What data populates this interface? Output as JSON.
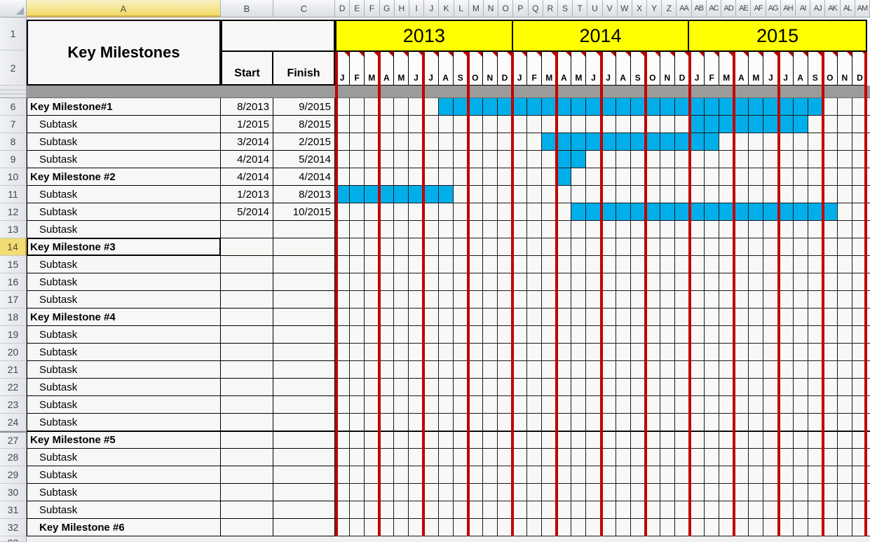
{
  "colors": {
    "bar_blue": "#00AEE9",
    "quarter_line_red": "#C00000",
    "year_band_yellow": "#FFFF00",
    "hidden_rows_band_gray": "#9B9B9B",
    "selected_header_gold": "#F2DC74",
    "gridline_black": "#000000"
  },
  "headers": {
    "left_columns": [
      "A",
      "B",
      "C"
    ],
    "chart_columns": [
      "D",
      "E",
      "F",
      "G",
      "H",
      "I",
      "J",
      "K",
      "L",
      "M",
      "N",
      "O",
      "P",
      "Q",
      "R",
      "S",
      "T",
      "U",
      "V",
      "W",
      "X",
      "Y",
      "Z",
      "AA",
      "AB",
      "AC",
      "AD",
      "AE",
      "AF",
      "AG",
      "AH",
      "AI",
      "AJ",
      "AK",
      "AL",
      "AM"
    ],
    "selected_column": "A",
    "selected_row": "14",
    "row_number_1": "1",
    "row_number_2": "2",
    "partial_bottom_row_number": "33"
  },
  "table": {
    "title": "Key Milestones",
    "start_label": "Start",
    "finish_label": "Finish"
  },
  "chart_data": {
    "type": "gantt",
    "title": "Key Milestones",
    "years": [
      "2013",
      "2014",
      "2015"
    ],
    "month_initials": [
      "J",
      "F",
      "M",
      "A",
      "M",
      "J",
      "J",
      "A",
      "S",
      "O",
      "N",
      "D"
    ],
    "x_axis": "months Jan 2013 - Dec 2015, one column per month, dark-red gridline every quarter",
    "bar_color": "#00AEE9",
    "tasks": [
      {
        "row": "6",
        "label": "Key Milestone#1",
        "level": 0,
        "bold": true,
        "start": "8/2013",
        "finish": "9/2015",
        "bar_cols": [
          7,
          32
        ]
      },
      {
        "row": "7",
        "label": "Subtask",
        "level": 1,
        "bold": false,
        "start": "1/2015",
        "finish": "8/2015",
        "bar_cols": [
          24,
          31
        ]
      },
      {
        "row": "8",
        "label": "Subtask",
        "level": 1,
        "bold": false,
        "start": "3/2014",
        "finish": "2/2015",
        "bar_cols": [
          14,
          25
        ]
      },
      {
        "row": "9",
        "label": "Subtask",
        "level": 1,
        "bold": false,
        "start": "4/2014",
        "finish": "5/2014",
        "bar_cols": [
          15,
          16
        ]
      },
      {
        "row": "10",
        "label": "Key Milestone #2",
        "level": 0,
        "bold": true,
        "start": "4/2014",
        "finish": "4/2014",
        "bar_cols": [
          15,
          15
        ]
      },
      {
        "row": "11",
        "label": "Subtask",
        "level": 1,
        "bold": false,
        "start": "1/2013",
        "finish": "8/2013",
        "bar_cols": [
          0,
          7
        ]
      },
      {
        "row": "12",
        "label": "Subtask",
        "level": 1,
        "bold": false,
        "start": "5/2014",
        "finish": "10/2015",
        "bar_cols": [
          16,
          33
        ]
      },
      {
        "row": "13",
        "label": "Subtask",
        "level": 1,
        "bold": false,
        "start": "",
        "finish": "",
        "bar_cols": null
      },
      {
        "row": "14",
        "label": "Key Milestone #3",
        "level": 0,
        "bold": true,
        "start": "",
        "finish": "",
        "bar_cols": null,
        "selected": true
      },
      {
        "row": "15",
        "label": "Subtask",
        "level": 1,
        "bold": false,
        "start": "",
        "finish": "",
        "bar_cols": null
      },
      {
        "row": "16",
        "label": "Subtask",
        "level": 1,
        "bold": false,
        "start": "",
        "finish": "",
        "bar_cols": null
      },
      {
        "row": "17",
        "label": "Subtask",
        "level": 1,
        "bold": false,
        "start": "",
        "finish": "",
        "bar_cols": null
      },
      {
        "row": "18",
        "label": "Key Milestone #4",
        "level": 0,
        "bold": true,
        "start": "",
        "finish": "",
        "bar_cols": null
      },
      {
        "row": "19",
        "label": "Subtask",
        "level": 1,
        "bold": false,
        "start": "",
        "finish": "",
        "bar_cols": null
      },
      {
        "row": "20",
        "label": "Subtask",
        "level": 1,
        "bold": false,
        "start": "",
        "finish": "",
        "bar_cols": null
      },
      {
        "row": "21",
        "label": "Subtask",
        "level": 1,
        "bold": false,
        "start": "",
        "finish": "",
        "bar_cols": null
      },
      {
        "row": "22",
        "label": "Subtask",
        "level": 1,
        "bold": false,
        "start": "",
        "finish": "",
        "bar_cols": null
      },
      {
        "row": "23",
        "label": "Subtask",
        "level": 1,
        "bold": false,
        "start": "",
        "finish": "",
        "bar_cols": null
      },
      {
        "row": "24",
        "label": "Subtask",
        "level": 1,
        "bold": false,
        "start": "",
        "finish": "",
        "bar_cols": null
      },
      {
        "row": "27",
        "label": "Key Milestone #5",
        "level": 0,
        "bold": true,
        "start": "",
        "finish": "",
        "bar_cols": null,
        "gap_before": true
      },
      {
        "row": "28",
        "label": "Subtask",
        "level": 1,
        "bold": false,
        "start": "",
        "finish": "",
        "bar_cols": null
      },
      {
        "row": "29",
        "label": "Subtask",
        "level": 1,
        "bold": false,
        "start": "",
        "finish": "",
        "bar_cols": null
      },
      {
        "row": "30",
        "label": "Subtask",
        "level": 1,
        "bold": false,
        "start": "",
        "finish": "",
        "bar_cols": null
      },
      {
        "row": "31",
        "label": "Subtask",
        "level": 1,
        "bold": false,
        "start": "",
        "finish": "",
        "bar_cols": null
      },
      {
        "row": "32",
        "label": "Key Milestone #6",
        "level": 1,
        "bold": true,
        "start": "",
        "finish": "",
        "bar_cols": null
      }
    ]
  }
}
